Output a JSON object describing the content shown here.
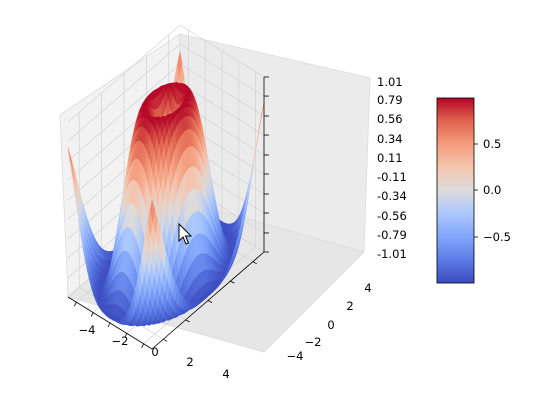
{
  "chart_data": {
    "type": "surface",
    "function": "z = sin(sqrt(x^2 + y^2))",
    "colormap": "coolwarm",
    "colors": {
      "low": "#3b4cc0",
      "mid": "#dddddd",
      "high": "#b40426"
    },
    "x_range": [
      -5,
      5
    ],
    "y_range": [
      -5,
      5
    ],
    "zlim": [
      -1.01,
      1.01
    ],
    "x_ticks": [
      -4,
      -2,
      0,
      2,
      4
    ],
    "y_ticks": [
      -4,
      -2,
      0,
      2,
      4
    ],
    "z_ticks": [
      -1.01,
      -0.79,
      -0.56,
      -0.34,
      -0.11,
      0.11,
      0.34,
      0.56,
      0.79,
      1.01
    ],
    "x_tick_labels": [
      "−4",
      "−2",
      "0",
      "2",
      "4"
    ],
    "y_tick_labels": [
      "−4",
      "−2",
      "0",
      "2",
      "4"
    ],
    "z_tick_labels": [
      "-1.01",
      "-0.79",
      "-0.56",
      "-0.34",
      "-0.11",
      "0.11",
      "0.34",
      "0.56",
      "0.79",
      "1.01"
    ],
    "colorbar": {
      "ticks": [
        0.5,
        0.0,
        -0.5
      ],
      "tick_labels": [
        "0.5",
        "0.0",
        "−0.5"
      ]
    },
    "grid": true,
    "cursor_icon": "mouse-pointer-icon"
  }
}
